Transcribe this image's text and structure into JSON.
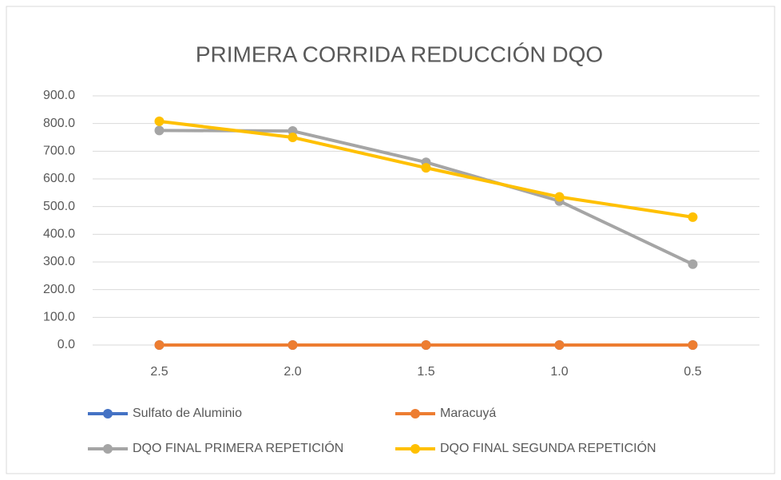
{
  "chart_data": {
    "type": "line",
    "title": "PRIMERA CORRIDA REDUCCIÓN DQO",
    "categories": [
      "2.5",
      "2.0",
      "1.5",
      "1.0",
      "0.5"
    ],
    "series": [
      {
        "name": "Sulfato de Aluminio",
        "color": "#4472c4",
        "values": [
          0,
          0,
          0,
          0,
          0
        ]
      },
      {
        "name": "Maracuyá",
        "color": "#ed7d31",
        "values": [
          0,
          0,
          0,
          0,
          0
        ]
      },
      {
        "name": "DQO FINAL PRIMERA REPETICIÓN",
        "color": "#a5a5a5",
        "values": [
          775,
          773,
          660,
          520,
          292
        ]
      },
      {
        "name": "DQO FINAL SEGUNDA REPETICIÓN",
        "color": "#ffc000",
        "values": [
          808,
          750,
          640,
          535,
          462
        ]
      }
    ],
    "ylim": [
      0,
      900
    ],
    "yticks": [
      {
        "value": 0,
        "label": "0.0"
      },
      {
        "value": 100,
        "label": "100.0"
      },
      {
        "value": 200,
        "label": "200.0"
      },
      {
        "value": 300,
        "label": "300.0"
      },
      {
        "value": 400,
        "label": "400.0"
      },
      {
        "value": 500,
        "label": "500.0"
      },
      {
        "value": 600,
        "label": "600.0"
      },
      {
        "value": 700,
        "label": "700.0"
      },
      {
        "value": 800,
        "label": "800.0"
      },
      {
        "value": 900,
        "label": "900.0"
      }
    ],
    "grid": true
  }
}
